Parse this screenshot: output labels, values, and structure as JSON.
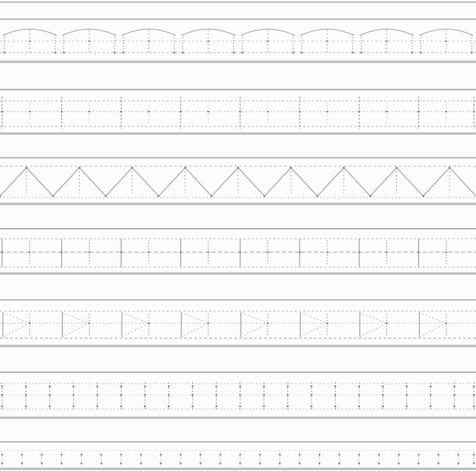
{
  "colors": {
    "background": "#fcfcfc",
    "rail": "#b8b8bc",
    "rail_blue": "#a8acc8",
    "member": "#9a9aa0",
    "dashed": "#b0b0b4",
    "node": "#7a7a80"
  },
  "trusses": [
    {
      "pattern": "pratt-arched-top",
      "panels": 8
    },
    {
      "pattern": "vertical-posts-dashed-chords",
      "panels": 8
    },
    {
      "pattern": "warren-zigzag",
      "panels": 9
    },
    {
      "pattern": "boxed-panels-dashed",
      "panels": 8
    },
    {
      "pattern": "k-bracing-dashed",
      "panels": 8
    },
    {
      "pattern": "dense-dotted-verticals",
      "panels": 20
    },
    {
      "pattern": "dotted-grid",
      "panels": 24
    }
  ]
}
